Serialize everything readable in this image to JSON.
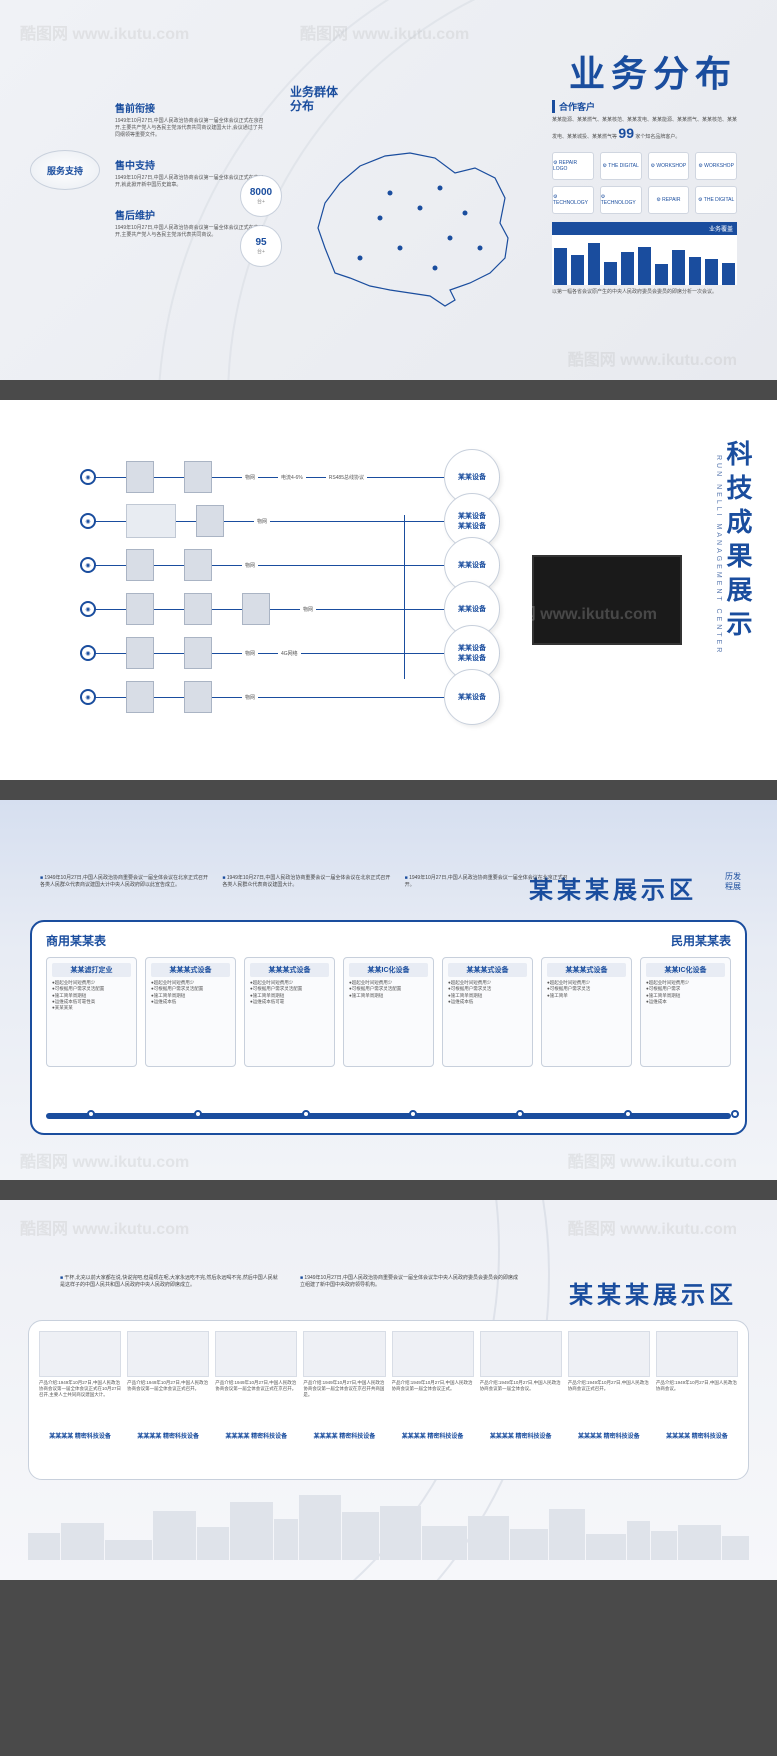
{
  "watermark_text": "酷图网 www.ikutu.com",
  "colors": {
    "primary": "#1a4d9e",
    "primary_light": "#2860b8",
    "bg_light": "#f5f6f8",
    "bg_gradient_top": "#d6dff0",
    "border": "#c8d0dc",
    "text_dark": "#333333",
    "text_muted": "#555555"
  },
  "panel1": {
    "title": "业务分布",
    "service_badge": "服务支持",
    "services": [
      {
        "h": "售前衔接",
        "t": "1949年10月27日,中国人民政治协商会议第一届全体会议正式在京召开,主要共产党人与各民主党派代表共同商议建国大计,会议通过了共同纲领等重要文件。"
      },
      {
        "h": "售中支持",
        "t": "1949年10月27日,中国人民政治协商会议第一届全体会议正式在京召开,就此掀开新中国历史篇章。"
      },
      {
        "h": "售后维护",
        "t": "1949年10月27日,中国人民政治协商会议第一届全体会议正式在京召开,主要共产党人与各民主党派代表共同商议。"
      }
    ],
    "stats": [
      {
        "n": "8000",
        "u": "台+"
      },
      {
        "n": "95",
        "u": "台+"
      }
    ],
    "map_title": "业务群体\n分布",
    "partners": {
      "h": "合作客户",
      "t": "某某能源、某某燃气、某某核范、某某发电、某某能源、某某燃气、某某核范、某某发电、某某城投、某某燃气等",
      "count": "99",
      "count_suffix": "家个知名品牌客户。"
    },
    "logos": [
      "REPAIR LOGO",
      "THE DIGITAL",
      "WORKSHOP",
      "WORKSHOP",
      "TECHNOLOGY",
      "TECHNOLOGY",
      "REPAIR",
      "THE DIGITAL"
    ],
    "chart": {
      "header": "业务覆盖",
      "bars": [
        80,
        65,
        90,
        50,
        70,
        82,
        45,
        75,
        60,
        55,
        48
      ],
      "max": 100,
      "footer": "以第一幅各省会议原产生的中央人民政府委员会委员的即席分析一次会议。",
      "bar_color": "#1a4d9e",
      "bg": "#ffffff"
    }
  },
  "panel2": {
    "title": "科技成果展示",
    "subtitle": "RUN NELLI MANAGEMENT CENTER",
    "rows": [
      {
        "labels": [
          "物网",
          "电流4-6%",
          "RS485总线协议"
        ],
        "end": "某某设备",
        "devices": 2
      },
      {
        "labels": [
          "物网"
        ],
        "end": "某某设备\n某某设备",
        "devices": 1,
        "has_house": true
      },
      {
        "labels": [
          "物网"
        ],
        "end": "某某设备",
        "devices": 2
      },
      {
        "labels": [
          "物网"
        ],
        "end": "某某设备",
        "devices": 3
      },
      {
        "labels": [
          "物网",
          "4G网络"
        ],
        "end": "某某设备\n某某设备",
        "devices": 2
      },
      {
        "labels": [
          "物网"
        ],
        "end": "某某设备",
        "devices": 2
      }
    ]
  },
  "panel3": {
    "title": "某某某展示区",
    "subright": "历发\n程展",
    "intros": [
      "1949年10月27日,中国人民政治协商重要会议一届全体会议在北京正式召开各类人民群众代表商议建国大计中央人民政府即以此宣告成立。",
      "1949年10月27日,中国人民政治协商重要会议一届全体会议在北京正式召开各类人民群众代表商议建国大计。",
      "1949年10月27日,中国人民政治协商重要会议一届全体会议在北京正式召开。"
    ],
    "left_h": "商用某某表",
    "right_h": "民用某某表",
    "cards": [
      {
        "h": "某某滤打定业",
        "t": "●超起业时间短费用少\n●可根据用户需求灵活配置\n●施工简单周期短\n●运维成本低可靠性高\n●某某某某"
      },
      {
        "h": "某某某式设备",
        "t": "●超起业时间短费用少\n●可根据用户需求灵活配置\n●施工简单周期短\n●运维成本低"
      },
      {
        "h": "某某某式设备",
        "t": "●超起业时间短费用少\n●可根据用户需求灵活配置\n●施工简单周期短\n●运维成本低可靠"
      },
      {
        "h": "某某IC化设备",
        "t": "●超起业时间短费用少\n●可根据用户需求灵活配置\n●施工简单周期短"
      },
      {
        "h": "某某某式设备",
        "t": "●超起业时间短费用少\n●可根据用户需求灵活\n●施工简单周期短\n●运维成本低"
      },
      {
        "h": "某某某式设备",
        "t": "●超起业时间短费用少\n●可根据用户需求灵活\n●施工简单"
      },
      {
        "h": "某某IC化设备",
        "t": "●超起业时间短费用少\n●可根据用户需求\n●施工简单周期短\n●运维成本"
      }
    ]
  },
  "panel4": {
    "title": "某某某展示区",
    "intros": [
      "干杯,北充以前大家都在说,快说完吧,但是现在呢,大家永远吃不完,然后永远喝不完,然后中国人民就是这样子的中国人民共和国人民政府中央人民政府即席成立。",
      "1949年10月27日,中国人民政治协商重要会议一届全体会议华中央人民政府委员会委员会的即席成立组建了新中国中央政府领导机构。"
    ],
    "products": [
      {
        "t": "产品介绍:1949年10月27日,中国人民政治协商会议第一届全体会议正式在10月27日召开,主要人士共同商议建国大计。",
        "cap": "某某某某 精密科技设备"
      },
      {
        "t": "产品介绍:1949年10月27日,中国人民政治协商会议第一届全体会议正式召开。",
        "cap": "某某某某 精密科技设备"
      },
      {
        "t": "产品介绍:1949年10月27日,中国人民政治协商会议第一届全体会议正式在京召开。",
        "cap": "某某某某 精密科技设备"
      },
      {
        "t": "产品介绍:1949年10月27日,中国人民政治协商会议第一届全体会议在京召开共商国是。",
        "cap": "某某某某 精密科技设备"
      },
      {
        "t": "产品介绍:1949年10月27日,中国人民政治协商会议第一届全体会议正式。",
        "cap": "某某某某 精密科技设备"
      },
      {
        "t": "产品介绍:1949年10月27日,中国人民政治协商会议第一届全体会议。",
        "cap": "某某某某 精密科技设备"
      },
      {
        "t": "产品介绍:1949年10月27日,中国人民政治协商会议正式召开。",
        "cap": "某某某某 精密科技设备"
      },
      {
        "t": "产品介绍:1949年10月27日,中国人民政治协商会议。",
        "cap": "某某某某 精密科技设备"
      }
    ],
    "skyline": [
      40,
      55,
      30,
      72,
      48,
      85,
      60,
      95,
      70,
      80,
      50,
      65,
      45,
      75,
      38,
      58,
      42,
      52,
      35
    ]
  }
}
